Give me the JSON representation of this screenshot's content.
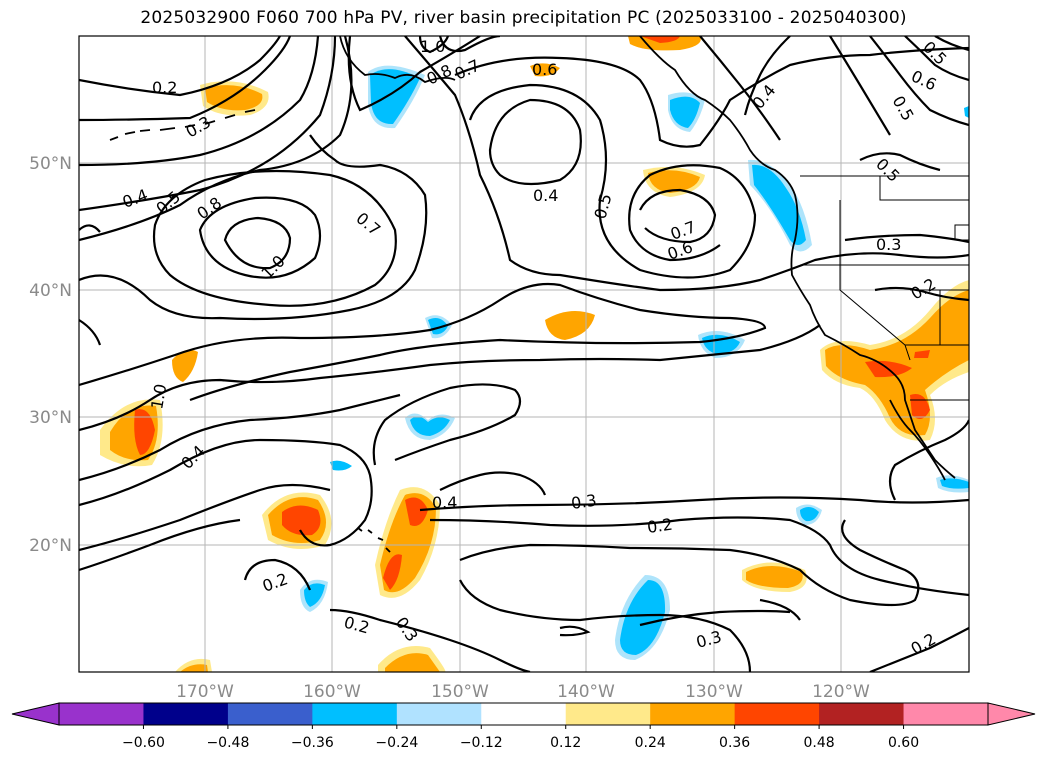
{
  "title": "2025032900 F060 700 hPa PV, river basin precipitation PC (2025033100 - 2025040300)",
  "map": {
    "lat_labels": [
      "50°N",
      "40°N",
      "30°N",
      "20°N"
    ],
    "lon_labels": [
      "170°W",
      "160°W",
      "150°W",
      "140°W",
      "130°W",
      "120°W"
    ],
    "contour_labels": [
      "1.0",
      "0.2",
      "0.3",
      "0.8",
      "0.7",
      "0.6",
      "0.4",
      "0.5",
      "0.6",
      "0.5",
      "0.4",
      "0.5",
      "0.5",
      "0.8",
      "0.7",
      "1.0",
      "0.7",
      "0.6",
      "0.4",
      "0.3",
      "0.2",
      "0.5",
      "1.0",
      "0.4",
      "0.4",
      "0.3",
      "0.2",
      "0.2",
      "0.2",
      "0.3",
      "0.3",
      "0.2"
    ],
    "colors": {
      "pos_light": "#ffe98a",
      "pos_mid": "#ffa500",
      "pos_strong": "#ff4500",
      "neg_mid": "#00bfff",
      "neg_light": "#aee4fb"
    }
  },
  "colorbar": {
    "ticks": [
      "−0.60",
      "−0.48",
      "−0.36",
      "−0.24",
      "−0.12",
      "0.12",
      "0.24",
      "0.36",
      "0.48",
      "0.60"
    ],
    "colors": [
      "#9932cc",
      "#00008b",
      "#3a5fcd",
      "#00bfff",
      "#b0e2ff",
      "#ffffff",
      "#ffe98a",
      "#ffa500",
      "#ff4500",
      "#b22222",
      "#ff88aa",
      "#ff88aa"
    ]
  }
}
